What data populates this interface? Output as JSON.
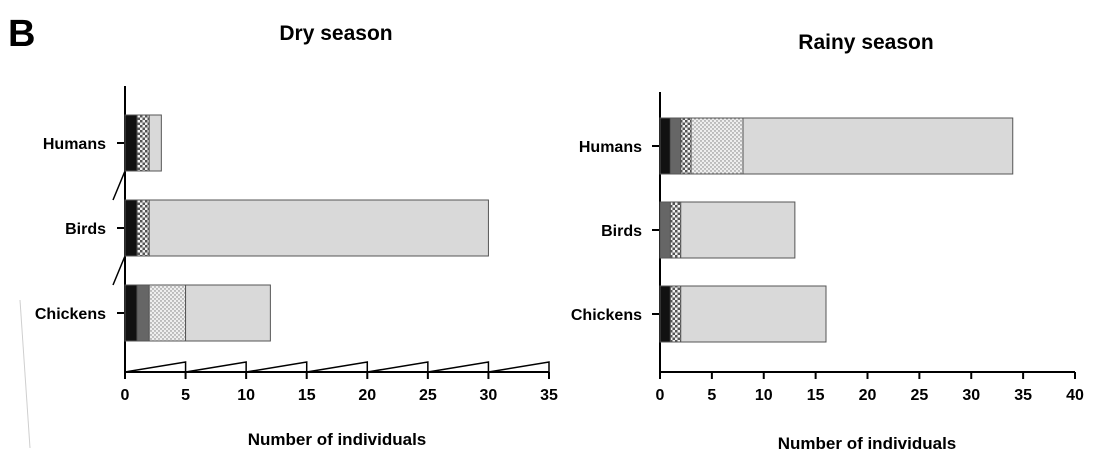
{
  "panel_label": "B",
  "chart_data": [
    {
      "type": "bar",
      "orientation": "horizontal",
      "stacked": true,
      "title": "Dry season",
      "xlabel": "Number of individuals",
      "ylabel": "",
      "xlim": [
        0,
        35
      ],
      "xticks": [
        "0",
        "5",
        "10",
        "15",
        "20",
        "25",
        "30",
        "35"
      ],
      "categories": [
        "Humans",
        "Birds",
        "Chickens"
      ],
      "series": [
        {
          "color": "#111111",
          "pattern": "solid",
          "values": [
            1,
            1,
            1
          ]
        },
        {
          "color": "#666666",
          "pattern": "solid",
          "values": [
            0,
            0,
            1
          ]
        },
        {
          "color": "#f2f2f2",
          "pattern": "checker",
          "values": [
            1,
            1,
            0
          ]
        },
        {
          "color": "#e6e6e6",
          "pattern": "dots",
          "values": [
            0,
            0,
            3
          ]
        },
        {
          "color": "#d9d9d9",
          "pattern": "solid",
          "values": [
            1,
            28,
            7
          ]
        }
      ]
    },
    {
      "type": "bar",
      "orientation": "horizontal",
      "stacked": true,
      "title": "Rainy season",
      "xlabel": "Number of individuals",
      "ylabel": "",
      "xlim": [
        0,
        40
      ],
      "xticks": [
        "0",
        "5",
        "10",
        "15",
        "20",
        "25",
        "30",
        "35",
        "40"
      ],
      "categories": [
        "Humans",
        "Birds",
        "Chickens"
      ],
      "series": [
        {
          "color": "#111111",
          "pattern": "solid",
          "values": [
            1,
            0,
            1
          ]
        },
        {
          "color": "#666666",
          "pattern": "solid",
          "values": [
            1,
            1,
            0
          ]
        },
        {
          "color": "#f2f2f2",
          "pattern": "checker",
          "values": [
            1,
            1,
            1
          ]
        },
        {
          "color": "#e6e6e6",
          "pattern": "dots",
          "values": [
            5,
            0,
            0
          ]
        },
        {
          "color": "#d9d9d9",
          "pattern": "solid",
          "values": [
            26,
            11,
            14
          ]
        }
      ]
    }
  ]
}
